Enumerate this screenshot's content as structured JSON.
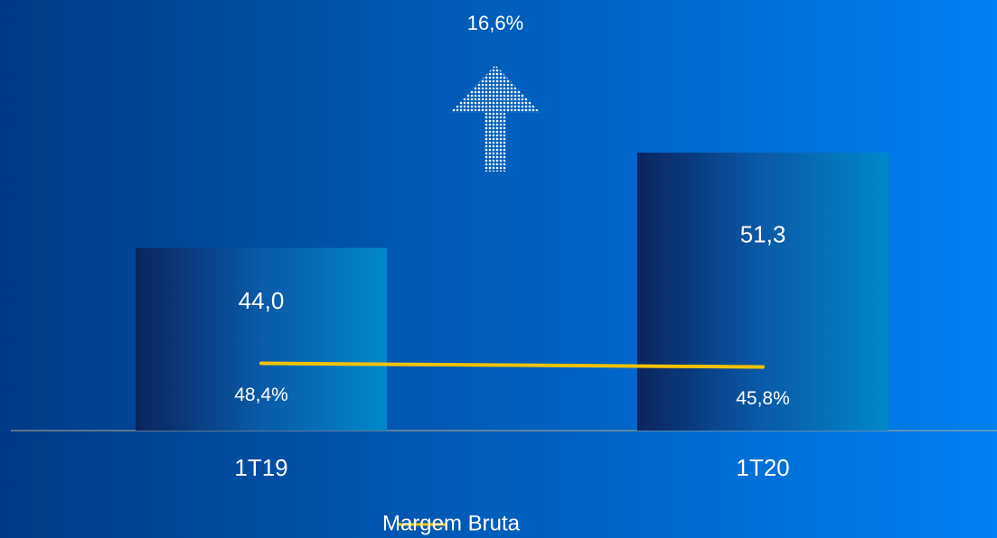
{
  "chart_data": {
    "type": "bar",
    "categories": [
      "1T19",
      "1T20"
    ],
    "values": [
      44.0,
      51.3
    ],
    "value_labels": [
      "44,0",
      "51,3"
    ],
    "color": "#0a2f6e",
    "ylim": [
      30,
      63
    ],
    "series": [
      {
        "name": "Margem Bruta",
        "type": "line",
        "color": "#f2c200",
        "axis": "y2",
        "values": [
          48.4,
          45.8
        ],
        "value_labels": [
          "48,4%",
          "45,8%"
        ]
      }
    ],
    "y2lim": [
      0,
      310
    ],
    "annotation": "16,6%"
  }
}
